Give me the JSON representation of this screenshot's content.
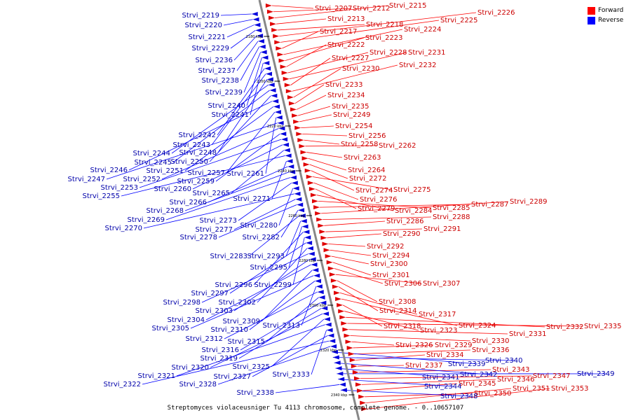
{
  "legend": {
    "forward_label": "Forward",
    "reverse_label": "Reverse",
    "forward_color": "#ff0000",
    "reverse_color": "#0000ff"
  },
  "caption": "Streptomyces violaceusniger Tu 4113 chromosome, complete genome. - 0..10657107",
  "colors": {
    "forward": "#e00000",
    "forward_line": "#ff0000",
    "reverse": "#0000dd",
    "reverse_line": "#0000ff",
    "axis": "#888888"
  },
  "ticks": [
    "2180 kbp",
    "2200 kbp",
    "2220 kbp",
    "2240 kbp",
    "2260 kbp",
    "2280 kbp",
    "2300 kbp",
    "2320 kbp",
    "2340 kbp"
  ],
  "forward_genes": [
    "Strvi_2207",
    "Strvi_2212",
    "Strvi_2215",
    "Strvi_2213",
    "Strvi_2218",
    "Strvi_2226",
    "Strvi_2225",
    "Strvi_2217",
    "Strvi_2224",
    "Strvi_2223",
    "Strvi_2222",
    "Strvi_2228",
    "Strvi_2231",
    "Strvi_2227",
    "Strvi_2232",
    "Strvi_2230",
    "Strvi_2233",
    "Strvi_2234",
    "Strvi_2235",
    "Strvi_2249",
    "Strvi_2254",
    "Strvi_2256",
    "Strvi_2258",
    "Strvi_2262",
    "Strvi_2263",
    "Strvi_2264",
    "Strvi_2272",
    "Strvi_2274",
    "Strvi_2275",
    "Strvi_2276",
    "Strvi_2279",
    "Strvi_2284",
    "Strvi_2285",
    "Strvi_2287",
    "Strvi_2289",
    "Strvi_2288",
    "Strvi_2286",
    "Strvi_2291",
    "Strvi_2290",
    "Strvi_2292",
    "Strvi_2294",
    "Strvi_2300",
    "Strvi_2301",
    "Strvi_2306",
    "Strvi_2307",
    "Strvi_2308",
    "Strvi_2314",
    "Strvi_2317",
    "Strvi_2324",
    "Strvi_2318",
    "Strvi_2323",
    "Strvi_2332",
    "Strvi_2335",
    "Strvi_2331",
    "Strvi_2330",
    "Strvi_2326",
    "Strvi_2329",
    "Strvi_2336",
    "Strvi_2334",
    "Strvi_2337",
    "Strvi_2343",
    "Strvi_2347",
    "Strvi_2346",
    "Strvi_2345",
    "Strvi_2350",
    "Strvi_2351",
    "Strvi_2353"
  ],
  "reverse_genes": [
    "Strvi_2219",
    "Strvi_2220",
    "Strvi_2221",
    "Strvi_2229",
    "Strvi_2236",
    "Strvi_2237",
    "Strvi_2238",
    "Strvi_2239",
    "Strvi_2240",
    "Strvi_2241",
    "Strvi_2242",
    "Strvi_2243",
    "Strvi_2248",
    "Strvi_2244",
    "Strvi_2245",
    "Strvi_2250",
    "Strvi_2246",
    "Strvi_2251",
    "Strvi_2257",
    "Strvi_2261",
    "Strvi_2247",
    "Strvi_2252",
    "Strvi_2259",
    "Strvi_2253",
    "Strvi_2260",
    "Strvi_2265",
    "Strvi_2255",
    "Strvi_2271",
    "Strvi_2266",
    "Strvi_2268",
    "Strvi_2269",
    "Strvi_2273",
    "Strvi_2280",
    "Strvi_2270",
    "Strvi_2277",
    "Strvi_2278",
    "Strvi_2282",
    "Strvi_2283",
    "Strvi_2293",
    "Strvi_2295",
    "Strvi_2296",
    "Strvi_2299",
    "Strvi_2297",
    "Strvi_2302",
    "Strvi_2298",
    "Strvi_2303",
    "Strvi_2304",
    "Strvi_2309",
    "Strvi_2305",
    "Strvi_2310",
    "Strvi_2313",
    "Strvi_2312",
    "Strvi_2315",
    "Strvi_2316",
    "Strvi_2319",
    "Strvi_2320",
    "Strvi_2325",
    "Strvi_2321",
    "Strvi_2333",
    "Strvi_2327",
    "Strvi_2322",
    "Strvi_2328",
    "Strvi_2339",
    "Strvi_2340",
    "Strvi_2342",
    "Strvi_2341",
    "Strvi_2349",
    "Strvi_2344",
    "Strvi_2338",
    "Strvi_2348"
  ]
}
